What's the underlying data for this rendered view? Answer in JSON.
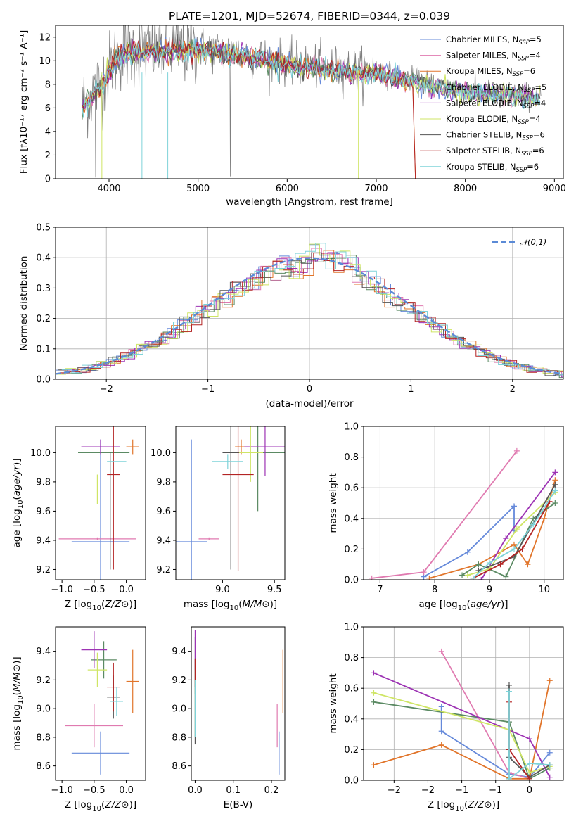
{
  "chart_data": [
    {
      "type": "line",
      "title": "PLATE=1201, MJD=52674, FIBERID=0344, z=0.039",
      "xlabel": "wavelength [Angstrom, rest frame]",
      "ylabel": "Flux [fλ10⁻¹⁷ erg cm⁻² s⁻¹ A⁻¹]",
      "xlim": [
        3400,
        9100
      ],
      "ylim": [
        0,
        13
      ],
      "xticks": [
        4000,
        5000,
        6000,
        7000,
        8000,
        9000
      ],
      "yticks": [
        0,
        2,
        4,
        6,
        8,
        10,
        12
      ],
      "data_series": {
        "name": "data",
        "color": "#7f7f7f"
      },
      "model_shape": {
        "x": [
          3700,
          3900,
          4100,
          4300,
          4600,
          5000,
          5500,
          6000,
          6500,
          7000,
          7500,
          8000,
          8500,
          8850
        ],
        "y": [
          6.2,
          8.0,
          10.5,
          11.0,
          11.0,
          11.1,
          10.6,
          9.8,
          9.4,
          9.1,
          8.2,
          7.5,
          7.2,
          6.9
        ]
      },
      "legend_position": "upper right",
      "series": [
        {
          "name": "Chabrier MILES, N_SSP=5",
          "color": "#6589da"
        },
        {
          "name": "Salpeter MILES, N_SSP=4",
          "color": "#e07ab0"
        },
        {
          "name": "Kroupa MILES, N_SSP=6",
          "color": "#e1752b"
        },
        {
          "name": "Chabrier ELODIE, N_SSP=5",
          "color": "#5b8a63"
        },
        {
          "name": "Salpeter ELODIE, N_SSP=4",
          "color": "#9d33b4"
        },
        {
          "name": "Kroupa ELODIE, N_SSP=4",
          "color": "#cfe565"
        },
        {
          "name": "Chabrier STELIB, N_SSP=6",
          "color": "#555555"
        },
        {
          "name": "Salpeter STELIB, N_SSP=6",
          "color": "#b32424"
        },
        {
          "name": "Kroupa STELIB, N_SSP=6",
          "color": "#7fd3d9"
        }
      ]
    },
    {
      "type": "bar",
      "xlabel": "(data-model)/error",
      "ylabel": "Normed distribution",
      "xlim": [
        -2.5,
        2.5
      ],
      "ylim": [
        0,
        0.5
      ],
      "xticks": [
        -2,
        -1,
        0,
        1,
        2
      ],
      "yticks": [
        0.0,
        0.1,
        0.2,
        0.3,
        0.4,
        0.5
      ],
      "grid": true,
      "legend_position": "upper right",
      "gaussian": {
        "name": "𝒩(0,1)",
        "color": "#5b8ad6",
        "mean": 0,
        "sigma": 1
      },
      "histogram_shape": {
        "bin_width": 0.1,
        "peak": 0.41
      }
    },
    {
      "type": "scatter",
      "xlabel": "Z [log10(Z/Z⊙)]",
      "ylabel": "age  [log10(age/yr)]",
      "xlim": [
        -1.1,
        0.3
      ],
      "ylim": [
        9.13,
        10.18
      ],
      "xticks": [
        -1.0,
        -0.5,
        0.0
      ],
      "yticks": [
        9.2,
        9.4,
        9.6,
        9.8,
        10.0
      ],
      "points": [
        {
          "model": "Chabrier MILES",
          "x": -0.4,
          "y": 9.39,
          "xerr": 0.45,
          "yerr": 0.7
        },
        {
          "model": "Salpeter MILES",
          "x": -0.45,
          "y": 9.41,
          "xerr": 0.6,
          "yerr": 0.01
        },
        {
          "model": "Kroupa MILES",
          "x": 0.1,
          "y": 10.04,
          "xerr": 0.1,
          "yerr": 0.05
        },
        {
          "model": "Chabrier ELODIE",
          "x": -0.35,
          "y": 10.0,
          "xerr": 0.4,
          "yerr": 0.0
        },
        {
          "model": "Salpeter ELODIE",
          "x": -0.4,
          "y": 10.04,
          "xerr": 0.3,
          "yerr": 0.05
        },
        {
          "model": "Kroupa ELODIE",
          "x": -0.45,
          "y": 9.75,
          "xerr": 0.0,
          "yerr": 0.1
        },
        {
          "model": "Chabrier STELIB",
          "x": -0.25,
          "y": 9.6,
          "xerr": 0.0,
          "yerr": 0.4
        },
        {
          "model": "Salpeter STELIB",
          "x": -0.2,
          "y": 9.85,
          "xerr": 0.1,
          "yerr": 0.65
        },
        {
          "model": "Kroupa STELIB",
          "x": -0.15,
          "y": 9.94,
          "xerr": 0.15,
          "yerr": 0.0
        }
      ]
    },
    {
      "type": "scatter",
      "xlabel": "mass [log10(M/M⊙)]",
      "xlim": [
        8.55,
        9.6
      ],
      "ylim": [
        9.13,
        10.18
      ],
      "xticks": [
        9.0,
        9.5
      ],
      "yticks": [
        9.2,
        9.4,
        9.6,
        9.8,
        10.0
      ],
      "points": [
        {
          "model": "Chabrier MILES",
          "x": 8.7,
          "y": 9.39,
          "xerr": 0.15,
          "yerr": 0.7
        },
        {
          "model": "Salpeter MILES",
          "x": 8.87,
          "y": 9.41,
          "xerr": 0.1,
          "yerr": 0.01
        },
        {
          "model": "Kroupa MILES",
          "x": 9.18,
          "y": 10.04,
          "xerr": 0.06,
          "yerr": 0.05
        },
        {
          "model": "Chabrier ELODIE",
          "x": 9.34,
          "y": 10.0,
          "xerr": 0.3,
          "yerr": 0.4
        },
        {
          "model": "Salpeter ELODIE",
          "x": 9.41,
          "y": 10.04,
          "xerr": 0.2,
          "yerr": 0.2
        },
        {
          "model": "Kroupa ELODIE",
          "x": 9.27,
          "y": 10.0,
          "xerr": 0.12,
          "yerr": 0.2
        },
        {
          "model": "Chabrier STELIB",
          "x": 9.08,
          "y": 10.0,
          "xerr": 0.08,
          "yerr": 0.8
        },
        {
          "model": "Salpeter STELIB",
          "x": 9.15,
          "y": 9.85,
          "xerr": 0.15,
          "yerr": 0.66
        },
        {
          "model": "Kroupa STELIB",
          "x": 9.05,
          "y": 9.94,
          "xerr": 0.15,
          "yerr": 0.05
        }
      ]
    },
    {
      "type": "line",
      "xlabel": "age  [log10(age/yr)]",
      "ylabel": "mass weight",
      "xlim": [
        6.7,
        10.35
      ],
      "ylim": [
        0,
        1.0
      ],
      "xticks": [
        7,
        8,
        9,
        10
      ],
      "yticks": [
        0.0,
        0.2,
        0.4,
        0.6,
        0.8,
        1.0
      ],
      "grid": true,
      "series": [
        {
          "name": "Chabrier MILES",
          "x": [
            7.8,
            8.6,
            9.45,
            9.45
          ],
          "y": [
            0.02,
            0.18,
            0.48,
            0.32
          ]
        },
        {
          "name": "Salpeter MILES",
          "x": [
            6.85,
            7.8,
            9.5
          ],
          "y": [
            0.01,
            0.05,
            0.84
          ]
        },
        {
          "name": "Kroupa MILES",
          "x": [
            7.9,
            8.8,
            9.45,
            9.7,
            10.0,
            10.2
          ],
          "y": [
            0.01,
            0.1,
            0.23,
            0.1,
            0.4,
            0.65
          ]
        },
        {
          "name": "Chabrier ELODIE",
          "x": [
            8.5,
            8.8,
            9.3,
            9.8,
            10.2
          ],
          "y": [
            0.03,
            0.1,
            0.02,
            0.4,
            0.5
          ]
        },
        {
          "name": "Salpeter ELODIE",
          "x": [
            8.85,
            9.3,
            10.2
          ],
          "y": [
            0.0,
            0.27,
            0.7
          ]
        },
        {
          "name": "Kroupa ELODIE",
          "x": [
            8.6,
            9.0,
            9.5,
            10.2
          ],
          "y": [
            0.03,
            0.07,
            0.33,
            0.57
          ]
        },
        {
          "name": "Chabrier STELIB",
          "x": [
            8.8,
            9.45,
            10.2
          ],
          "y": [
            0.06,
            0.15,
            0.62
          ]
        },
        {
          "name": "Salpeter STELIB",
          "x": [
            8.7,
            9.2,
            9.6,
            10.1
          ],
          "y": [
            0.01,
            0.1,
            0.2,
            0.51
          ]
        },
        {
          "name": "Kroupa STELIB",
          "x": [
            8.7,
            9.0,
            9.45,
            9.8,
            10.2
          ],
          "y": [
            0.01,
            0.11,
            0.2,
            0.36,
            0.58
          ]
        }
      ]
    },
    {
      "type": "scatter",
      "xlabel": "Z [log10(Z/Z⊙)]",
      "ylabel": "mass [log10(M/M⊙)]",
      "xlim": [
        -1.1,
        0.3
      ],
      "ylim": [
        8.5,
        9.57
      ],
      "xticks": [
        -1.0,
        -0.5,
        0.0
      ],
      "yticks": [
        8.6,
        8.8,
        9.0,
        9.2,
        9.4
      ],
      "points": [
        {
          "model": "Chabrier MILES",
          "x": -0.4,
          "y": 8.69,
          "xerr": 0.45,
          "yerr": 0.15
        },
        {
          "model": "Salpeter MILES",
          "x": -0.5,
          "y": 8.88,
          "xerr": 0.45,
          "yerr": 0.15
        },
        {
          "model": "Kroupa MILES",
          "x": 0.1,
          "y": 9.19,
          "xerr": 0.1,
          "yerr": 0.22
        },
        {
          "model": "Chabrier ELODIE",
          "x": -0.35,
          "y": 9.34,
          "xerr": 0.2,
          "yerr": 0.13
        },
        {
          "model": "Salpeter ELODIE",
          "x": -0.5,
          "y": 9.41,
          "xerr": 0.2,
          "yerr": 0.13
        },
        {
          "model": "Kroupa ELODIE",
          "x": -0.45,
          "y": 9.27,
          "xerr": 0.15,
          "yerr": 0.12
        },
        {
          "model": "Chabrier STELIB",
          "x": -0.2,
          "y": 9.08,
          "xerr": 0.1,
          "yerr": 0.15
        },
        {
          "model": "Salpeter STELIB",
          "x": -0.2,
          "y": 9.15,
          "xerr": 0.1,
          "yerr": 0.17
        },
        {
          "model": "Kroupa STELIB",
          "x": -0.15,
          "y": 9.05,
          "xerr": 0.1,
          "yerr": 0.1
        }
      ]
    },
    {
      "type": "scatter",
      "xlabel": "E(B-V)",
      "xlim": [
        -0.01,
        0.235
      ],
      "ylim": [
        8.5,
        9.57
      ],
      "xticks": [
        0.0,
        0.1,
        0.2
      ],
      "yticks": [
        8.6,
        8.8,
        9.0,
        9.2,
        9.4
      ],
      "points": [
        {
          "model": "Chabrier MILES",
          "x": 0.22,
          "y": 8.69,
          "yerr": 0.15
        },
        {
          "model": "Salpeter MILES",
          "x": 0.215,
          "y": 8.88,
          "yerr": 0.15
        },
        {
          "model": "Kroupa MILES",
          "x": 0.23,
          "y": 9.19,
          "yerr": 0.22
        },
        {
          "model": "Chabrier ELODIE",
          "x": 0.0,
          "y": 9.3,
          "yerr": 0.2
        },
        {
          "model": "Salpeter ELODIE",
          "x": 0.0,
          "y": 9.41,
          "yerr": 0.14
        },
        {
          "model": "Kroupa ELODIE",
          "x": 0.0,
          "y": 9.0,
          "yerr": 0.2
        },
        {
          "model": "Chabrier STELIB",
          "x": 0.0,
          "y": 9.05,
          "yerr": 0.3
        },
        {
          "model": "Salpeter STELIB",
          "x": 0.0,
          "y": 9.25,
          "yerr": 0.1
        },
        {
          "model": "Kroupa STELIB",
          "x": 0.0,
          "y": 9.0,
          "yerr": 0.2
        }
      ]
    },
    {
      "type": "line",
      "xlabel": "Z [log10(Z/Z⊙)]",
      "ylabel": "mass weight",
      "xlim": [
        -2.45,
        0.5
      ],
      "ylim": [
        0,
        1.0
      ],
      "xticks": [
        -2.0,
        -1.5,
        -1.0,
        -0.5,
        0.0
      ],
      "yticks": [
        0.0,
        0.2,
        0.4,
        0.6,
        0.8,
        1.0
      ],
      "grid": true,
      "series": [
        {
          "name": "Chabrier MILES",
          "x": [
            -1.3,
            -1.3,
            -0.3,
            0.0,
            0.3
          ],
          "y": [
            0.48,
            0.32,
            0.04,
            0.02,
            0.18
          ]
        },
        {
          "name": "Salpeter MILES",
          "x": [
            -1.3,
            -0.3,
            0.0
          ],
          "y": [
            0.84,
            0.05,
            0.01
          ]
        },
        {
          "name": "Kroupa MILES",
          "x": [
            -2.3,
            -1.3,
            -0.3,
            0.0,
            0.3
          ],
          "y": [
            0.1,
            0.23,
            0.01,
            0.01,
            0.65
          ]
        },
        {
          "name": "Chabrier ELODIE",
          "x": [
            -2.3,
            -0.3,
            0.0,
            0.3
          ],
          "y": [
            0.51,
            0.38,
            0.01,
            0.08
          ]
        },
        {
          "name": "Salpeter ELODIE",
          "x": [
            -2.3,
            0.0,
            0.3
          ],
          "y": [
            0.7,
            0.27,
            0.02
          ]
        },
        {
          "name": "Kroupa ELODIE",
          "x": [
            -2.3,
            -0.3,
            0.0,
            0.3
          ],
          "y": [
            0.57,
            0.33,
            0.05,
            0.09
          ]
        },
        {
          "name": "Chabrier STELIB",
          "x": [
            -0.3,
            -0.3,
            0.0,
            0.3
          ],
          "y": [
            0.62,
            0.15,
            0.02,
            0.1
          ]
        },
        {
          "name": "Salpeter STELIB",
          "x": [
            -0.3,
            -0.3,
            0.0
          ],
          "y": [
            0.51,
            0.2,
            0.01
          ]
        },
        {
          "name": "Kroupa STELIB",
          "x": [
            -0.3,
            -0.3,
            0.0,
            0.3
          ],
          "y": [
            0.58,
            0.01,
            0.11,
            0.1
          ]
        }
      ]
    }
  ]
}
